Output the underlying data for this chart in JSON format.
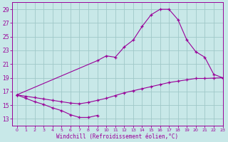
{
  "xlabel": "Windchill (Refroidissement éolien,°C)",
  "background_color": "#c8e8e8",
  "line_color": "#990099",
  "grid_color": "#a0c8c8",
  "ylim": [
    12,
    30
  ],
  "xlim": [
    -0.5,
    23
  ],
  "yticks": [
    13,
    15,
    17,
    19,
    21,
    23,
    25,
    27,
    29
  ],
  "xticks": [
    0,
    1,
    2,
    3,
    4,
    5,
    6,
    7,
    8,
    9,
    10,
    11,
    12,
    13,
    14,
    15,
    16,
    17,
    18,
    19,
    20,
    21,
    22,
    23
  ],
  "s1_x": [
    0,
    1,
    2,
    3,
    4,
    5,
    6,
    7,
    8,
    9
  ],
  "s1_y": [
    16.5,
    16.0,
    15.5,
    15.1,
    14.6,
    14.2,
    13.6,
    13.2,
    13.2,
    13.5
  ],
  "s2_x": [
    0,
    9,
    10,
    11,
    12,
    13,
    14,
    15,
    16,
    17,
    18,
    19,
    20,
    21,
    22,
    23
  ],
  "s2_y": [
    16.5,
    21.5,
    22.2,
    22.0,
    23.5,
    24.5,
    26.5,
    28.2,
    29.0,
    29.0,
    27.5,
    24.5,
    22.8,
    22.0,
    19.5,
    19.0
  ],
  "s3_x": [
    0,
    1,
    2,
    3,
    4,
    5,
    6,
    7,
    8,
    9,
    10,
    11,
    12,
    13,
    14,
    15,
    16,
    17,
    18,
    19,
    20,
    21,
    22,
    23
  ],
  "s3_y": [
    16.5,
    16.3,
    16.1,
    15.9,
    15.7,
    15.5,
    15.3,
    15.2,
    15.4,
    15.7,
    16.0,
    16.4,
    16.8,
    17.1,
    17.4,
    17.7,
    18.0,
    18.3,
    18.5,
    18.7,
    18.9,
    18.9,
    18.95,
    19.0
  ]
}
